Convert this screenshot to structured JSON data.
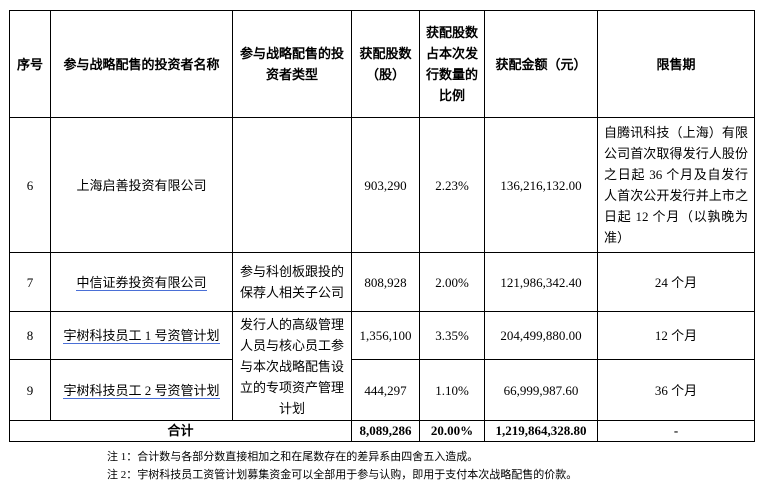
{
  "table": {
    "header": [
      "序号",
      "参与战略配售的投资者名称",
      "参与战略配售的投资者类型",
      "获配股数（股）",
      "获配股数占本次发行数量的比例",
      "获配金额（元）",
      "限售期"
    ],
    "rows": [
      {
        "no": "6",
        "name": "上海启善投资有限公司",
        "shares": "903,290",
        "ratio": "2.23%",
        "amount": "136,216,132.00",
        "lockup": "自腾讯科技（上海）有限公司首次取得发行人股份之日起 36 个月及自发行人首次公开发行并上市之日起 12 个月（以孰晚为准）"
      },
      {
        "no": "7",
        "name": "中信证券投资有限公司",
        "type": "参与科创板跟投的保荐人相关子公司",
        "shares": "808,928",
        "ratio": "2.00%",
        "amount": "121,986,342.40",
        "lockup": "24 个月"
      },
      {
        "no": "8",
        "name": "宇树科技员工 1 号资管计划",
        "type": "发行人的高级管理人员与核心员工参与本次战略配售设立的专项资产管理计划",
        "shares": "1,356,100",
        "ratio": "3.35%",
        "amount": "204,499,880.00",
        "lockup": "12 个月"
      },
      {
        "no": "9",
        "name": "宇树科技员工 2 号资管计划",
        "shares": "444,297",
        "ratio": "1.10%",
        "amount": "66,999,987.60",
        "lockup": "36 个月"
      }
    ],
    "total": {
      "label": "合计",
      "shares": "8,089,286",
      "ratio": "20.00%",
      "amount": "1,219,864,328.80",
      "lockup": "-"
    }
  },
  "notes": [
    "注 1：合计数与各部分数直接相加之和在尾数存在的差异系由四舍五入造成。",
    "注 2：宇树科技员工资管计划募集资金可以全部用于参与认购，即用于支付本次战略配售的价款。"
  ]
}
